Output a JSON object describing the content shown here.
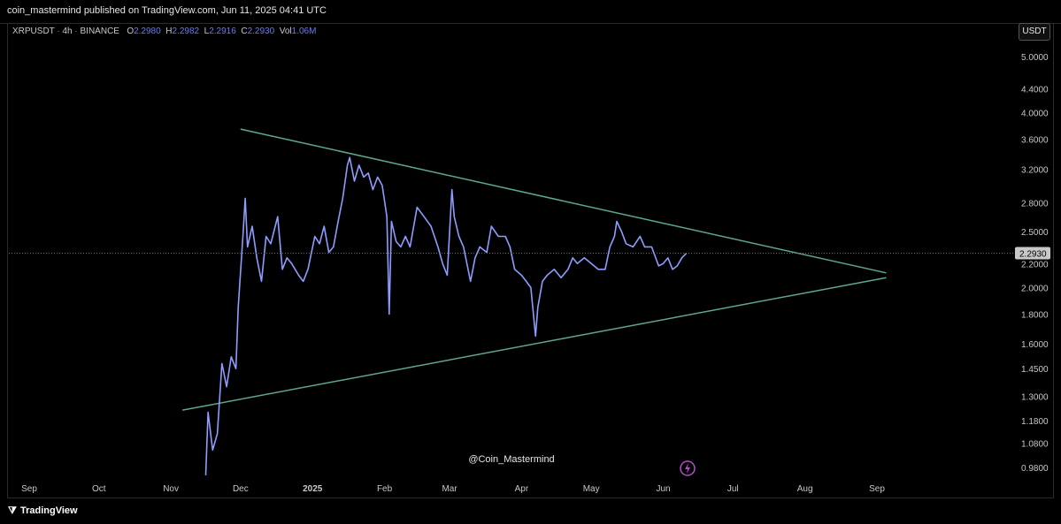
{
  "header": {
    "published_text": "coin_mastermind published on TradingView.com, Jun 11, 2025 04:41 UTC"
  },
  "legend": {
    "symbol": "XRPUSDT",
    "interval": "4h",
    "exchange": "BINANCE",
    "open_label": "O",
    "open": "2.2980",
    "high_label": "H",
    "high": "2.2982",
    "low_label": "L",
    "low": "2.2916",
    "close_label": "C",
    "close": "2.2930",
    "vol_label": "Vol",
    "vol": "1.06M"
  },
  "currency_button": "USDT",
  "watermark": "@Coin_Mastermind",
  "footer": {
    "brand": "TradingView"
  },
  "colors": {
    "price_line": "#8f9cff",
    "trendline": "#5fa88a",
    "axis_text": "#c8c8c8",
    "last_price_bg": "#c8c8c8",
    "flash_icon": "#b84cc9"
  },
  "chart_data": {
    "type": "line",
    "scale": "log",
    "x_axis": {
      "ticks": [
        "Sep",
        "Oct",
        "Nov",
        "Dec",
        "2025",
        "Feb",
        "Mar",
        "Apr",
        "May",
        "Jun",
        "Jul",
        "Aug",
        "Sep"
      ],
      "range": [
        "2024-09-01",
        "2025-09-05"
      ]
    },
    "y_axis": {
      "ticks": [
        "5.0000",
        "4.4000",
        "4.0000",
        "3.6000",
        "3.2000",
        "2.8000",
        "2.5000",
        "2.2000",
        "2.0000",
        "1.8000",
        "1.6000",
        "1.4500",
        "1.3000",
        "1.1800",
        "1.0800",
        "0.9800"
      ],
      "range": [
        0.94,
        5.3
      ],
      "last_price": "2.2930"
    },
    "series": [
      {
        "points": [
          [
            "2024-11-16",
            0.95
          ],
          [
            "2024-11-17",
            1.22
          ],
          [
            "2024-11-19",
            1.05
          ],
          [
            "2024-11-21",
            1.12
          ],
          [
            "2024-11-23",
            1.48
          ],
          [
            "2024-11-25",
            1.35
          ],
          [
            "2024-11-27",
            1.52
          ],
          [
            "2024-11-29",
            1.45
          ],
          [
            "2024-11-30",
            1.85
          ],
          [
            "2024-12-02",
            2.45
          ],
          [
            "2024-12-03",
            2.85
          ],
          [
            "2024-12-04",
            2.35
          ],
          [
            "2024-12-06",
            2.55
          ],
          [
            "2024-12-08",
            2.25
          ],
          [
            "2024-12-10",
            2.05
          ],
          [
            "2024-12-12",
            2.45
          ],
          [
            "2024-12-14",
            2.38
          ],
          [
            "2024-12-17",
            2.65
          ],
          [
            "2024-12-19",
            2.15
          ],
          [
            "2024-12-21",
            2.25
          ],
          [
            "2024-12-23",
            2.2
          ],
          [
            "2024-12-26",
            2.1
          ],
          [
            "2024-12-28",
            2.05
          ],
          [
            "2024-12-30",
            2.15
          ],
          [
            "2025-01-02",
            2.45
          ],
          [
            "2025-01-04",
            2.38
          ],
          [
            "2025-01-06",
            2.55
          ],
          [
            "2025-01-08",
            2.3
          ],
          [
            "2025-01-10",
            2.35
          ],
          [
            "2025-01-12",
            2.6
          ],
          [
            "2025-01-14",
            2.85
          ],
          [
            "2025-01-16",
            3.25
          ],
          [
            "2025-01-17",
            3.35
          ],
          [
            "2025-01-19",
            3.05
          ],
          [
            "2025-01-21",
            3.25
          ],
          [
            "2025-01-23",
            3.1
          ],
          [
            "2025-01-25",
            3.15
          ],
          [
            "2025-01-27",
            2.95
          ],
          [
            "2025-01-29",
            3.1
          ],
          [
            "2025-01-31",
            3.0
          ],
          [
            "2025-02-02",
            2.65
          ],
          [
            "2025-02-03",
            1.8
          ],
          [
            "2025-02-04",
            2.6
          ],
          [
            "2025-02-06",
            2.4
          ],
          [
            "2025-02-08",
            2.35
          ],
          [
            "2025-02-10",
            2.45
          ],
          [
            "2025-02-12",
            2.35
          ],
          [
            "2025-02-15",
            2.75
          ],
          [
            "2025-02-18",
            2.65
          ],
          [
            "2025-02-21",
            2.55
          ],
          [
            "2025-02-24",
            2.35
          ],
          [
            "2025-02-26",
            2.2
          ],
          [
            "2025-02-28",
            2.1
          ],
          [
            "2025-03-02",
            2.95
          ],
          [
            "2025-03-03",
            2.65
          ],
          [
            "2025-03-05",
            2.45
          ],
          [
            "2025-03-07",
            2.35
          ],
          [
            "2025-03-10",
            2.05
          ],
          [
            "2025-03-12",
            2.25
          ],
          [
            "2025-03-14",
            2.35
          ],
          [
            "2025-03-17",
            2.3
          ],
          [
            "2025-03-19",
            2.55
          ],
          [
            "2025-03-22",
            2.45
          ],
          [
            "2025-03-25",
            2.45
          ],
          [
            "2025-03-27",
            2.35
          ],
          [
            "2025-03-29",
            2.15
          ],
          [
            "2025-04-01",
            2.1
          ],
          [
            "2025-04-03",
            2.05
          ],
          [
            "2025-04-05",
            2.0
          ],
          [
            "2025-04-07",
            1.65
          ],
          [
            "2025-04-08",
            1.85
          ],
          [
            "2025-04-10",
            2.05
          ],
          [
            "2025-04-12",
            2.1
          ],
          [
            "2025-04-15",
            2.15
          ],
          [
            "2025-04-18",
            2.08
          ],
          [
            "2025-04-21",
            2.15
          ],
          [
            "2025-04-23",
            2.25
          ],
          [
            "2025-04-25",
            2.2
          ],
          [
            "2025-04-28",
            2.25
          ],
          [
            "2025-05-01",
            2.2
          ],
          [
            "2025-05-04",
            2.15
          ],
          [
            "2025-05-07",
            2.15
          ],
          [
            "2025-05-09",
            2.35
          ],
          [
            "2025-05-11",
            2.45
          ],
          [
            "2025-05-12",
            2.6
          ],
          [
            "2025-05-14",
            2.5
          ],
          [
            "2025-05-16",
            2.38
          ],
          [
            "2025-05-19",
            2.35
          ],
          [
            "2025-05-22",
            2.45
          ],
          [
            "2025-05-24",
            2.35
          ],
          [
            "2025-05-27",
            2.35
          ],
          [
            "2025-05-30",
            2.18
          ],
          [
            "2025-06-01",
            2.2
          ],
          [
            "2025-06-03",
            2.25
          ],
          [
            "2025-06-05",
            2.15
          ],
          [
            "2025-06-07",
            2.18
          ],
          [
            "2025-06-09",
            2.25
          ],
          [
            "2025-06-11",
            2.293
          ]
        ]
      }
    ],
    "trendlines": [
      {
        "points": [
          [
            "2024-12-01",
            3.75
          ],
          [
            "2025-09-05",
            2.12
          ]
        ]
      },
      {
        "points": [
          [
            "2024-11-06",
            1.23
          ],
          [
            "2025-09-05",
            2.08
          ]
        ]
      }
    ],
    "grid": false,
    "legend": "none"
  }
}
